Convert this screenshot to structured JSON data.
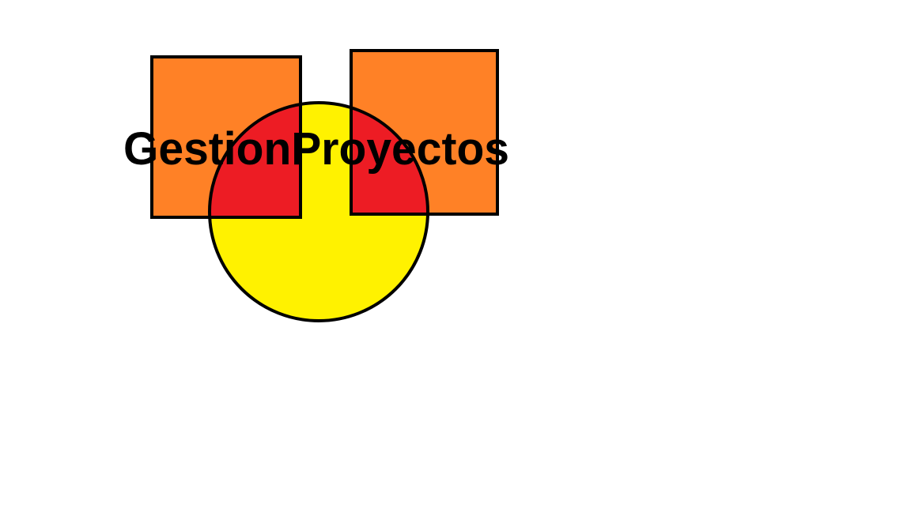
{
  "logo": {
    "title": "GestionProyectos",
    "shapes": {
      "left_square": "orange-square",
      "right_square": "orange-square",
      "circle": "yellow-circle",
      "overlap": "red-overlap-region"
    }
  },
  "colors": {
    "background": "#ffffff",
    "square_fill": "#ff8126",
    "circle_fill": "#fff200",
    "overlap_fill": "#ed1c24",
    "outline": "#000000",
    "text": "#000000"
  }
}
